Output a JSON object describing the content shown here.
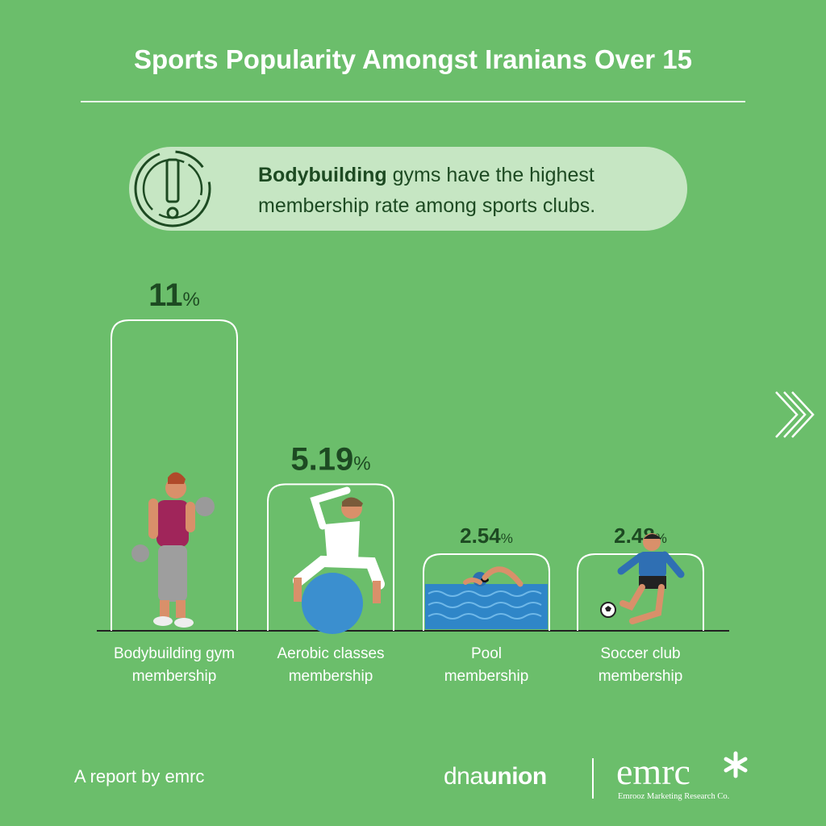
{
  "header": {
    "title": "Sports Popularity Amongst Iranians Over 15"
  },
  "callout": {
    "bold": "Bodybuilding",
    "rest_line1": " gyms have the highest",
    "line2": "membership rate among sports clubs.",
    "icon": "alert-icon"
  },
  "chart_data": {
    "type": "bar",
    "categories": [
      "Bodybuilding gym membership",
      "Aerobic classes membership",
      "Pool membership",
      "Soccer club membership"
    ],
    "label_lines": [
      [
        "Bodybuilding gym",
        "membership"
      ],
      [
        "Aerobic classes",
        "membership"
      ],
      [
        "Pool",
        "membership"
      ],
      [
        "Soccer club",
        "membership"
      ]
    ],
    "values": [
      11,
      5.19,
      2.54,
      2.48
    ],
    "value_labels": [
      "11",
      "5.19",
      "2.54",
      "2.48"
    ],
    "unit": "%",
    "title": "Sports Popularity Amongst Iranians Over 15",
    "ylim": [
      0,
      11
    ],
    "grid": false,
    "icons": [
      "bodybuilder-icon",
      "aerobic-ball-icon",
      "swimmer-icon",
      "soccer-player-icon"
    ]
  },
  "navigation": {
    "next_icon": "chevron-right-icon"
  },
  "footer": {
    "credit": "A report by emrc",
    "logo1_light": "dna",
    "logo1_bold": "union",
    "logo2_name": "emrc",
    "logo2_sub": "Emrooz Marketing Research Co."
  },
  "colors": {
    "background": "#6bbe6b",
    "callout": "#c6e6c3",
    "dark_text": "#1d4a22",
    "bar_outline": "#ffffff",
    "baseline": "#222222"
  }
}
